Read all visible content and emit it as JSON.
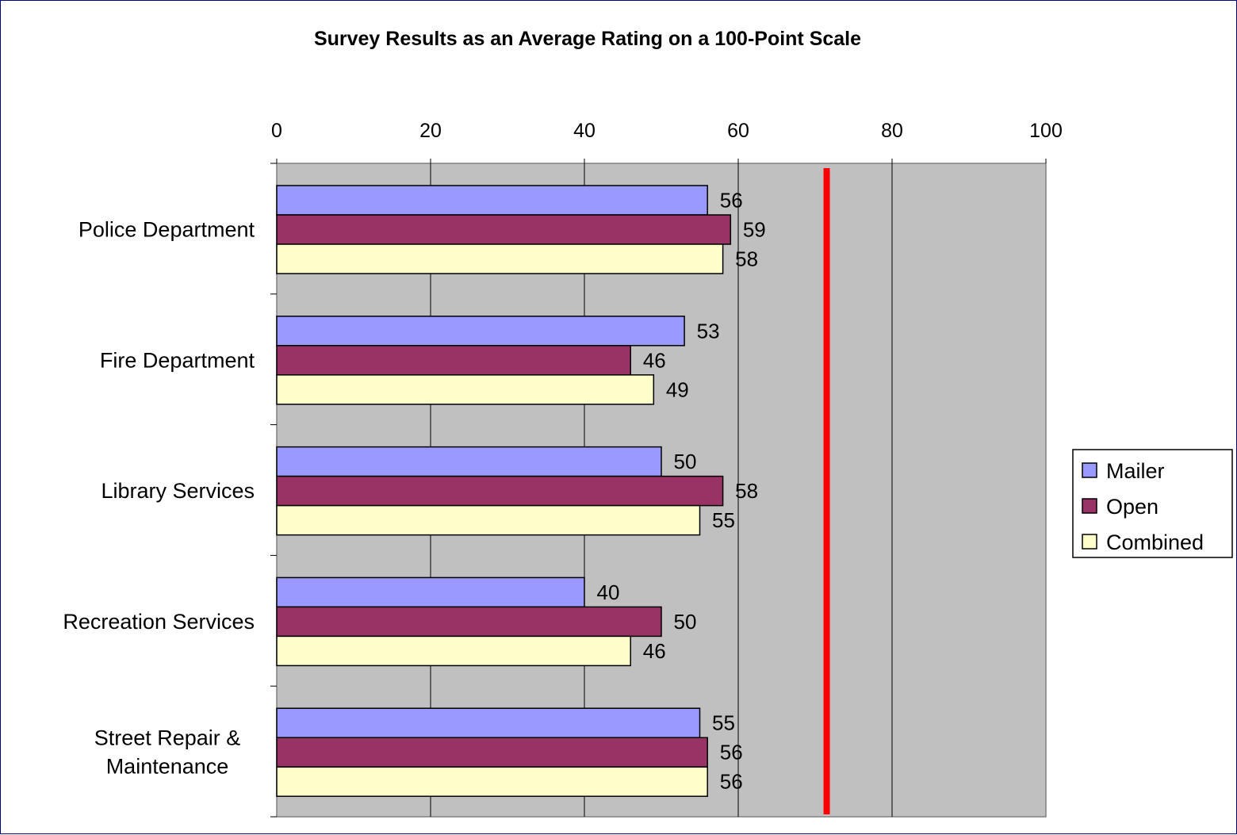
{
  "chart_data": {
    "type": "bar",
    "orientation": "horizontal",
    "title": "Survey Results as an Average Rating on a 100-Point Scale",
    "xlim": [
      0,
      100
    ],
    "x_ticks": [
      "0",
      "20",
      "40",
      "60",
      "80",
      "100"
    ],
    "x_tick_values": [
      0,
      20,
      40,
      60,
      80,
      100
    ],
    "x_axis_position": "top",
    "grid": true,
    "legend_position": "right",
    "categories": [
      [
        "Police Department"
      ],
      [
        "Fire Department"
      ],
      [
        "Library Services"
      ],
      [
        "Recreation Services"
      ],
      [
        "Street Repair &",
        "Maintenance"
      ]
    ],
    "series": [
      {
        "name": "Mailer",
        "color": "#9999ff",
        "values": [
          56,
          53,
          50,
          40,
          55
        ],
        "labels": [
          "56",
          "53",
          "50",
          "40",
          "55"
        ]
      },
      {
        "name": "Open",
        "color": "#993366",
        "values": [
          59,
          46,
          58,
          50,
          56
        ],
        "labels": [
          "59",
          "46",
          "58",
          "50",
          "56"
        ]
      },
      {
        "name": "Combined",
        "color": "#ffffcc",
        "values": [
          58,
          49,
          55,
          46,
          56
        ],
        "labels": [
          "58",
          "49",
          "55",
          "46",
          "56"
        ]
      }
    ],
    "reference_line": {
      "value": 71.5,
      "color": "#ff0000"
    },
    "plot_background": "#c0c0c0"
  }
}
